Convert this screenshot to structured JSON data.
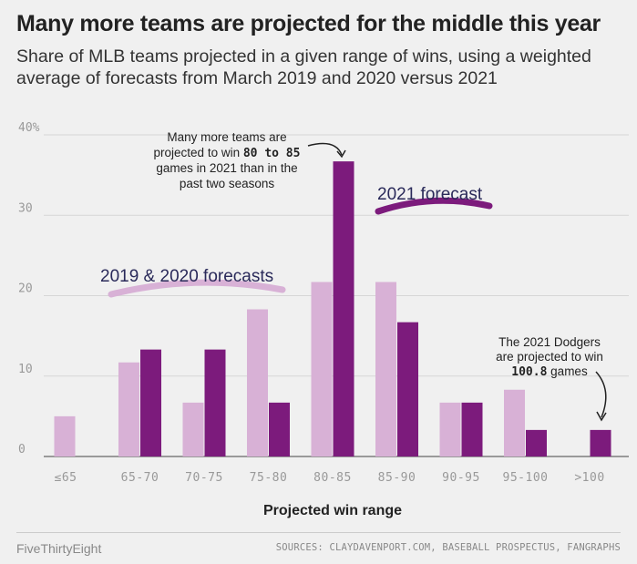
{
  "title": "Many more teams are projected for the middle this year",
  "subtitle": "Share of MLB teams projected in a given range of wins, using a weighted average of forecasts from March 2019 and 2020 versus 2021",
  "footer": {
    "brand": "FiveThirtyEight",
    "sources": "SOURCES: CLAYDAVENPORT.COM, BASEBALL PROSPECTUS, FANGRAPHS"
  },
  "colors": {
    "series_2019_2020": "#d8b1d6",
    "series_2021": "#7c1b7c",
    "background": "#f0f0f0",
    "grid": "#d6d6d6",
    "axis_text": "#999999"
  },
  "chart_data": {
    "type": "bar",
    "categories": [
      "≤65",
      "65-70",
      "70-75",
      "75-80",
      "80-85",
      "85-90",
      "90-95",
      "95-100",
      ">100"
    ],
    "series": [
      {
        "name": "2019 & 2020 forecasts",
        "values": [
          5.0,
          11.7,
          6.7,
          18.3,
          21.7,
          21.7,
          6.7,
          8.3,
          0
        ]
      },
      {
        "name": "2021 forecast",
        "values": [
          0,
          13.3,
          13.3,
          6.7,
          36.7,
          16.7,
          6.7,
          3.3,
          3.3
        ]
      }
    ],
    "xlabel": "Projected win range",
    "ylabel": "",
    "ylim": [
      0,
      40
    ],
    "yticks": [
      0,
      10,
      20,
      30,
      40
    ],
    "ytick_labels": [
      "0",
      "10",
      "20",
      "30",
      "40%"
    ],
    "grid": true,
    "annotations": {
      "middle_lines": [
        "Many more teams are",
        "projected to win 80 to 85",
        "games in 2021 than in the",
        "past two seasons"
      ],
      "middle_bold": "80 to 85",
      "dodgers_lines": [
        "The 2021 Dodgers",
        "are projected to win",
        "100.8 games"
      ],
      "dodgers_bold": "100.8"
    },
    "legend_labels": {
      "series_2021": "2021 forecast",
      "series_2019_2020": "2019 & 2020 forecasts"
    }
  }
}
